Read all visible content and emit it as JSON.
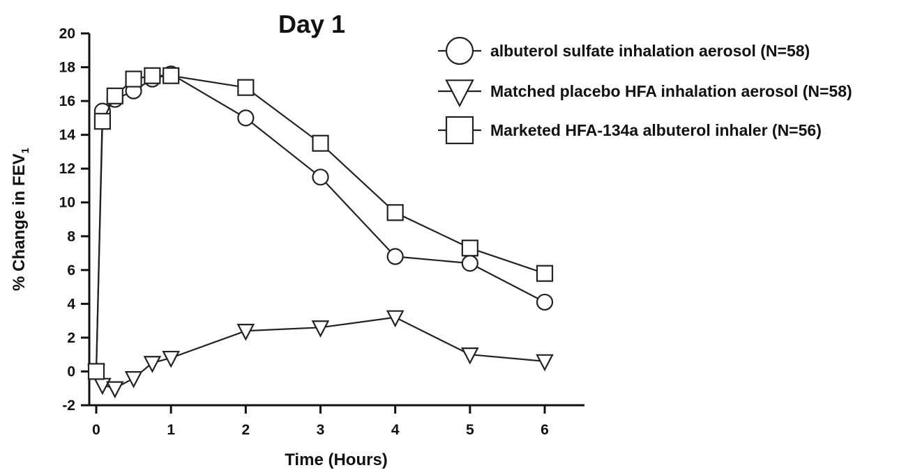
{
  "chart_data": {
    "type": "line",
    "title": "Day 1",
    "xlabel": "Time (Hours)",
    "ylabel": "% Change in FEV",
    "ylabel_subscript": "1",
    "xlim": [
      0,
      6
    ],
    "ylim": [
      -2,
      20
    ],
    "x_ticks": [
      0,
      1,
      2,
      3,
      4,
      5,
      6
    ],
    "y_ticks": [
      -2,
      0,
      2,
      4,
      6,
      8,
      10,
      12,
      14,
      16,
      18,
      20
    ],
    "grid": false,
    "legend_position": "top-right",
    "series": [
      {
        "name": "albuterol sulfate inhalation aerosol (N=58)",
        "marker": "circle",
        "x": [
          0,
          0.083,
          0.25,
          0.5,
          0.75,
          1,
          2,
          3,
          4,
          5,
          6
        ],
        "y": [
          0,
          15.4,
          16.1,
          16.6,
          17.3,
          17.6,
          15.0,
          11.5,
          6.8,
          6.4,
          4.1
        ]
      },
      {
        "name": "Matched placebo HFA inhalation aerosol (N=58)",
        "marker": "triangle-down",
        "x": [
          0,
          0.083,
          0.25,
          0.5,
          0.75,
          1,
          2,
          3,
          4,
          5,
          6
        ],
        "y": [
          0,
          -0.8,
          -1.0,
          -0.4,
          0.5,
          0.8,
          2.4,
          2.6,
          3.2,
          1.0,
          0.6
        ]
      },
      {
        "name": "Marketed HFA-134a albuterol inhaler (N=56)",
        "marker": "square",
        "x": [
          0,
          0.083,
          0.25,
          0.5,
          0.75,
          1,
          2,
          3,
          4,
          5,
          6
        ],
        "y": [
          0,
          14.8,
          16.3,
          17.3,
          17.5,
          17.5,
          16.8,
          13.5,
          9.4,
          7.3,
          5.8
        ]
      }
    ]
  }
}
